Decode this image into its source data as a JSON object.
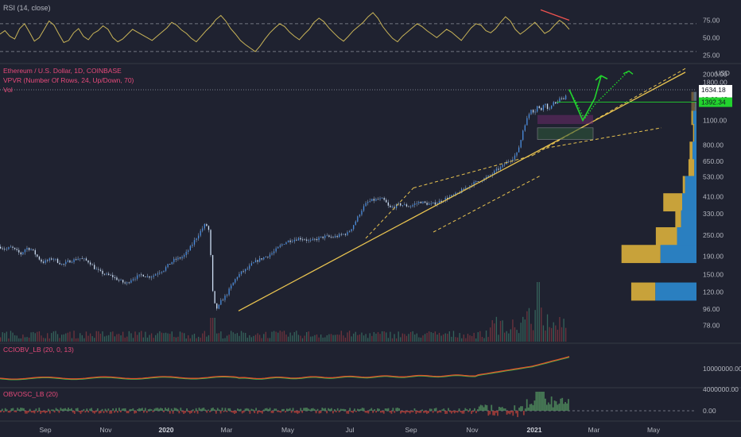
{
  "chart_data": [
    {
      "type": "line",
      "panel": "rsi",
      "label": "RSI (14, close)",
      "yticks": [
        75.0,
        50.0,
        25.0
      ],
      "ytick_labels": [
        "75.00",
        "50.00",
        "25.00"
      ],
      "ylim": [
        15,
        95
      ],
      "bands": [
        70,
        30
      ],
      "series_color": "#c9b458",
      "series": [
        {
          "name": "RSI",
          "values": [
            55,
            60,
            52,
            48,
            63,
            70,
            58,
            45,
            50,
            62,
            74,
            68,
            55,
            43,
            46,
            57,
            63,
            52,
            47,
            56,
            60,
            67,
            62,
            50,
            44,
            48,
            55,
            62,
            58,
            54,
            50,
            46,
            52,
            58,
            64,
            72,
            68,
            61,
            56,
            49,
            44,
            52,
            60,
            67,
            76,
            82,
            74,
            63,
            55,
            46,
            40,
            35,
            30,
            38,
            48,
            57,
            64,
            70,
            66,
            58,
            52,
            47,
            55,
            62,
            72,
            78,
            73,
            64,
            57,
            50,
            45,
            52,
            60,
            66,
            72,
            80,
            86,
            78,
            66,
            57,
            49,
            44,
            52,
            58,
            64,
            70,
            66,
            60,
            55,
            50,
            56,
            62,
            58,
            52,
            46,
            55,
            64,
            70,
            68,
            60,
            57,
            63,
            72,
            80,
            74,
            62,
            55,
            60,
            66,
            72,
            64,
            56,
            60,
            68,
            75,
            70,
            62
          ]
        }
      ],
      "divergence": {
        "color": "#f05350"
      }
    },
    {
      "type": "candlestick",
      "panel": "price",
      "title": "Ethereum / U.S. Dollar, 1D, COINBASE",
      "indicators": [
        "VPVR (Number Of Rows, 24, Up/Down, 70)",
        "Vol"
      ],
      "currency": "USD",
      "scale": "log",
      "ylim": [
        70,
        2200
      ],
      "yticks": [
        78,
        96,
        120,
        150,
        190,
        250,
        330,
        410,
        530,
        650,
        800,
        1100,
        1400,
        1800,
        2000
      ],
      "ytick_labels": [
        "78.00",
        "96.00",
        "120.00",
        "150.00",
        "190.00",
        "250.00",
        "330.00",
        "410.00",
        "530.00",
        "650.00",
        "800.00",
        "1100.00",
        "1400.00",
        "1800.00",
        "2000.00"
      ],
      "last_price": 1634.18,
      "last_price_label": "1634.18",
      "countdown": "18:00:42",
      "level_price": 1392.34,
      "level_label": "1392.34",
      "up_color": "#5b9cf6",
      "down_color": "#3a6bb8",
      "close_path": [
        [
          0,
          215
        ],
        [
          5,
          208
        ],
        [
          10,
          214
        ],
        [
          14,
          205
        ],
        [
          19,
          196
        ],
        [
          24,
          212
        ],
        [
          29,
          208
        ],
        [
          34,
          190
        ],
        [
          39,
          176
        ],
        [
          44,
          180
        ],
        [
          49,
          186
        ],
        [
          53,
          178
        ],
        [
          58,
          170
        ],
        [
          63,
          178
        ],
        [
          68,
          181
        ],
        [
          73,
          186
        ],
        [
          78,
          182
        ],
        [
          83,
          176
        ],
        [
          88,
          162
        ],
        [
          93,
          155
        ],
        [
          98,
          150
        ],
        [
          103,
          148
        ],
        [
          108,
          142
        ],
        [
          112,
          138
        ],
        [
          117,
          133
        ],
        [
          122,
          142
        ],
        [
          127,
          146
        ],
        [
          132,
          150
        ],
        [
          137,
          146
        ],
        [
          142,
          148
        ],
        [
          147,
          155
        ],
        [
          152,
          160
        ],
        [
          157,
          172
        ],
        [
          162,
          182
        ],
        [
          167,
          186
        ],
        [
          171,
          192
        ],
        [
          176,
          210
        ],
        [
          181,
          235
        ],
        [
          186,
          262
        ],
        [
          191,
          290
        ],
        [
          194,
          265
        ],
        [
          196,
          180
        ],
        [
          198,
          108
        ],
        [
          200,
          100
        ],
        [
          202,
          96
        ],
        [
          205,
          106
        ],
        [
          210,
          115
        ],
        [
          215,
          130
        ],
        [
          220,
          146
        ],
        [
          225,
          156
        ],
        [
          230,
          162
        ],
        [
          234,
          172
        ],
        [
          239,
          180
        ],
        [
          244,
          186
        ],
        [
          249,
          192
        ],
        [
          254,
          200
        ],
        [
          259,
          214
        ],
        [
          264,
          226
        ],
        [
          268,
          232
        ],
        [
          273,
          236
        ],
        [
          278,
          240
        ],
        [
          283,
          238
        ],
        [
          288,
          231
        ],
        [
          293,
          236
        ],
        [
          298,
          242
        ],
        [
          303,
          246
        ],
        [
          308,
          243
        ],
        [
          313,
          246
        ],
        [
          318,
          252
        ],
        [
          323,
          256
        ],
        [
          327,
          275
        ],
        [
          331,
          302
        ],
        [
          336,
          345
        ],
        [
          341,
          380
        ],
        [
          346,
          392
        ],
        [
          351,
          396
        ],
        [
          355,
          398
        ],
        [
          358,
          388
        ],
        [
          362,
          355
        ],
        [
          366,
          360
        ],
        [
          371,
          372
        ],
        [
          376,
          368
        ],
        [
          381,
          362
        ],
        [
          386,
          375
        ],
        [
          391,
          385
        ],
        [
          396,
          376
        ],
        [
          401,
          372
        ],
        [
          406,
          380
        ],
        [
          411,
          392
        ],
        [
          416,
          405
        ],
        [
          421,
          415
        ],
        [
          426,
          430
        ],
        [
          431,
          452
        ],
        [
          436,
          472
        ],
        [
          441,
          490
        ],
        [
          446,
          505
        ],
        [
          451,
          520
        ],
        [
          456,
          540
        ],
        [
          461,
          575
        ],
        [
          466,
          600
        ],
        [
          471,
          640
        ],
        [
          476,
          670
        ],
        [
          481,
          720
        ],
        [
          485,
          880
        ],
        [
          487,
          1010
        ],
        [
          491,
          1150
        ],
        [
          494,
          1280
        ],
        [
          497,
          1220
        ],
        [
          500,
          1330
        ],
        [
          503,
          1240
        ],
        [
          506,
          1400
        ],
        [
          509,
          1300
        ],
        [
          512,
          1260
        ],
        [
          515,
          1420
        ],
        [
          518,
          1360
        ],
        [
          521,
          1480
        ],
        [
          524,
          1400
        ],
        [
          527,
          1560
        ],
        [
          530,
          1640
        ]
      ],
      "forecast": {
        "color": "#22d32e"
      },
      "trendline_color": "#e8c350",
      "vpvr": {
        "bins": [
          {
            "price": 1160,
            "up": 0.06,
            "down": 0.03
          },
          {
            "price": 930,
            "up": 0.04,
            "down": 0.02
          },
          {
            "price": 740,
            "up": 0.07,
            "down": 0.05
          },
          {
            "price": 590,
            "up": 0.04,
            "down": 0.1
          },
          {
            "price": 475,
            "up": 0.2,
            "down": 0.04
          },
          {
            "price": 380,
            "up": 0.25,
            "down": 0.33
          },
          {
            "price": 305,
            "up": 0.27,
            "down": 0.1
          },
          {
            "price": 245,
            "up": 0.34,
            "down": 0.37
          },
          {
            "price": 195,
            "up": 0.63,
            "down": 0.68
          },
          {
            "price": 120,
            "up": 0.72,
            "down": 0.42
          }
        ],
        "up_color": "#2a7fc0",
        "down_color": "#c8a23a"
      },
      "volume": {
        "up_color": "#3d7a6a",
        "down_color": "#8a3a42"
      }
    },
    {
      "type": "line",
      "panel": "cciobv",
      "label": "CCIOBV_LB (20, 0, 13)",
      "yticks": [
        10000000
      ],
      "ytick_labels": [
        "10000000.00"
      ],
      "colors": {
        "main": "#e0512a",
        "signal": "#3cc24a"
      }
    },
    {
      "type": "area",
      "panel": "obvosc",
      "label": "OBVOSC_LB (20)",
      "yticks": [
        4000000,
        0
      ],
      "ytick_labels": [
        "4000000.00",
        "0.00"
      ],
      "colors": {
        "up": "#4f8a5c",
        "down": "#b0403a"
      }
    }
  ],
  "x_axis": {
    "labels": [
      "Sep",
      "Nov",
      "2020",
      "Mar",
      "May",
      "Jul",
      "Sep",
      "Nov",
      "2021",
      "Mar",
      "May"
    ],
    "bold": [
      "2020",
      "2021"
    ]
  }
}
